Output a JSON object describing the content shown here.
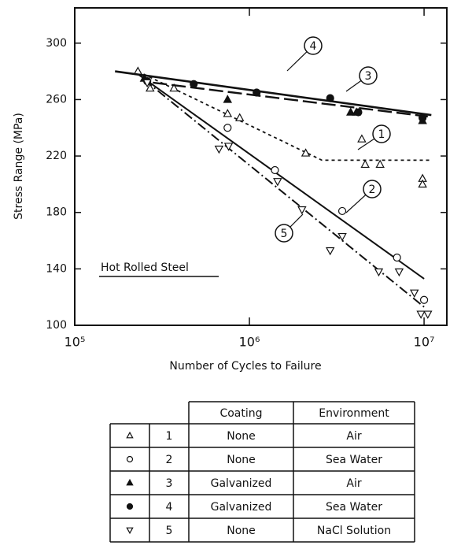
{
  "chart_data": {
    "type": "scatter",
    "ylabel": "Stress Range (MPa)",
    "xlabel": "Number of Cycles to Failure",
    "annotation": "Hot Rolled Steel",
    "xscale": "log",
    "xlim": [
      100000,
      13500000
    ],
    "xticks": [
      {
        "value": 100000,
        "label": "10⁵"
      },
      {
        "value": 1000000,
        "label": "10⁶"
      },
      {
        "value": 10000000,
        "label": "10⁷"
      }
    ],
    "ylim": [
      100,
      325
    ],
    "yticks": [
      100,
      140,
      180,
      220,
      260,
      300
    ],
    "table_headers": [
      "Coating",
      "Environment"
    ],
    "series": [
      {
        "label": "1",
        "coating": "None",
        "environment": "Air",
        "marker": "triangle-up",
        "filled": false,
        "color": "#111",
        "x": [
          230000,
          270000,
          370000,
          750000,
          880000,
          2100000,
          4400000,
          4600000,
          5600000,
          9800000,
          9800000
        ],
        "values": [
          280,
          268,
          268,
          250,
          247,
          222,
          232,
          214,
          214,
          204,
          200
        ],
        "fit": {
          "dash": "4 4",
          "width": 1.8,
          "x": [
            230000,
            2600000,
            11000000
          ],
          "values": [
            280,
            217,
            217
          ]
        }
      },
      {
        "label": "2",
        "coating": "None",
        "environment": "Sea Water",
        "marker": "circle",
        "filled": false,
        "color": "#111",
        "x": [
          750000,
          1400000,
          3400000,
          7000000,
          10000000
        ],
        "values": [
          240,
          210,
          181,
          148,
          118
        ],
        "fit": {
          "dash": "",
          "width": 2,
          "x": [
            230000,
            10000000
          ],
          "values": [
            278,
            133
          ]
        }
      },
      {
        "label": "3",
        "coating": "Galvanized",
        "environment": "Air",
        "marker": "triangle-up",
        "filled": true,
        "color": "#111",
        "x": [
          250000,
          750000,
          3800000,
          4100000,
          9800000
        ],
        "values": [
          275,
          260,
          251,
          251,
          245
        ],
        "fit": {
          "dash": "18 6",
          "width": 2.4,
          "x": [
            280000,
            10500000
          ],
          "values": [
            272,
            248
          ]
        }
      },
      {
        "label": "4",
        "coating": "Galvanized",
        "environment": "Sea Water",
        "marker": "circle",
        "filled": true,
        "color": "#111",
        "x": [
          260000,
          480000,
          1100000,
          2900000,
          4200000,
          9800000
        ],
        "values": [
          273,
          271,
          265,
          261,
          251,
          247
        ],
        "fit": {
          "dash": "",
          "width": 2.6,
          "x": [
            170000,
            11000000
          ],
          "values": [
            280,
            249
          ]
        }
      },
      {
        "label": "5",
        "coating": "None",
        "environment": "NaCl Solution",
        "marker": "triangle-down",
        "filled": false,
        "color": "#111",
        "x": [
          260000,
          670000,
          760000,
          1450000,
          2000000,
          2900000,
          3400000,
          5500000,
          7200000,
          8800000,
          9600000,
          10500000
        ],
        "values": [
          272,
          225,
          227,
          202,
          182,
          153,
          163,
          138,
          138,
          123,
          108,
          108
        ],
        "fit": {
          "dash": "12 4 2 4",
          "width": 2,
          "x": [
            250000,
            10000000
          ],
          "values": [
            274,
            113
          ]
        }
      }
    ]
  }
}
